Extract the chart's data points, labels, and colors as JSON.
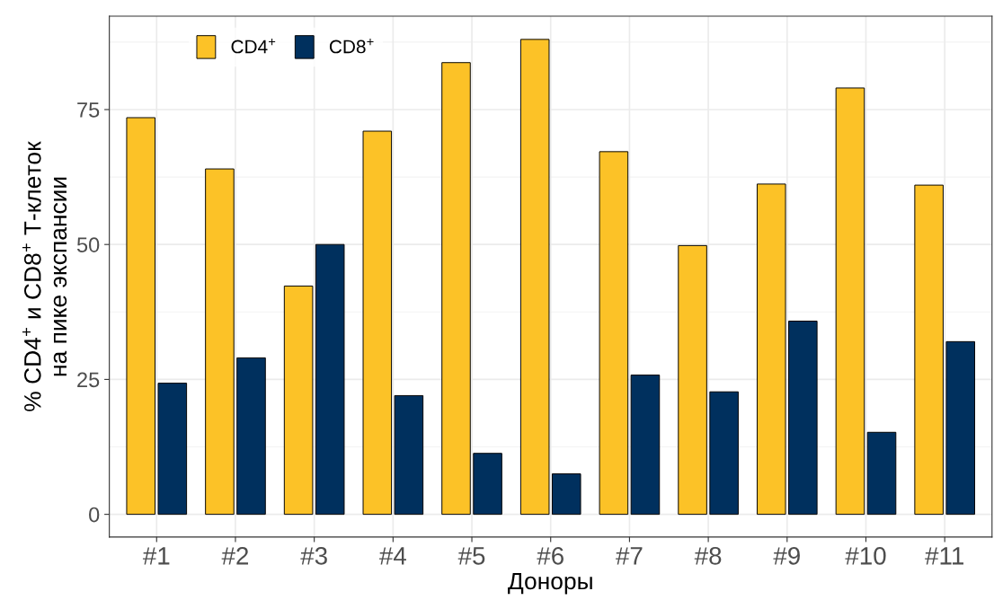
{
  "chart_data": {
    "type": "bar",
    "xlabel": "Доноры",
    "ylabel": "% CD4$^{+}$ и CD8$^{+}$ T-клеток\nна пике экспансии",
    "categories": [
      "#1",
      "#2",
      "#3",
      "#4",
      "#5",
      "#6",
      "#7",
      "#8",
      "#9",
      "#10",
      "#11"
    ],
    "series": [
      {
        "name": "CD4$^{+}$",
        "color": "#fcc227",
        "values": [
          73.5,
          64,
          42.3,
          71,
          83.7,
          88,
          67.2,
          49.8,
          61.2,
          79,
          61
        ]
      },
      {
        "name": "CD8$^{+}$",
        "color": "#00305e",
        "values": [
          24.3,
          29,
          50,
          22,
          11.3,
          7.5,
          25.8,
          22.7,
          35.8,
          15.2,
          32
        ]
      }
    ],
    "ylim": [
      -4.2,
      92.3
    ],
    "yticks": [
      0,
      25,
      50,
      75
    ],
    "grid": true,
    "legend": "top left"
  }
}
